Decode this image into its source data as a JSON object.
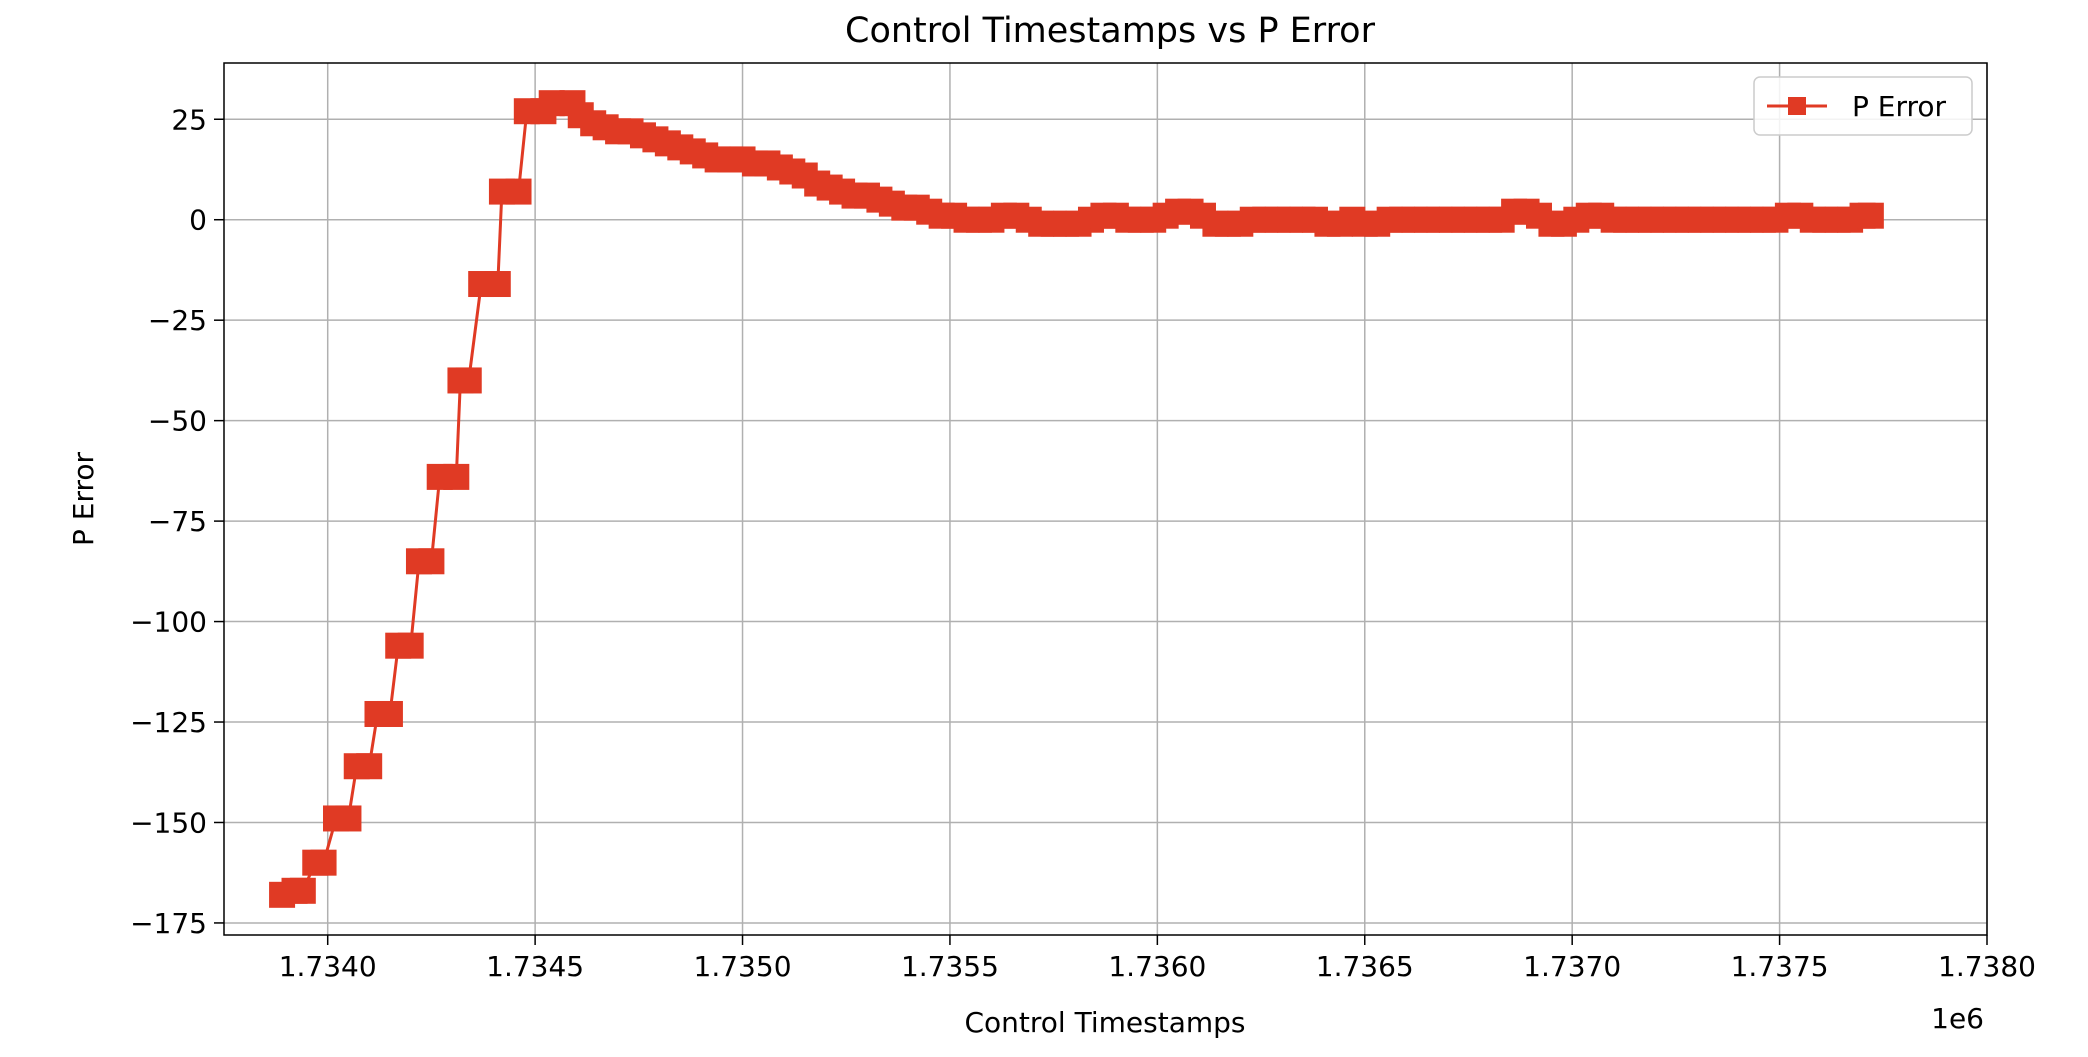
{
  "chart_data": {
    "type": "line",
    "title": "Control Timestamps vs P Error",
    "xlabel": "Control Timestamps",
    "ylabel": "P Error",
    "x_offset_label": "1e6",
    "xlim": [
      1.73375,
      1.738
    ],
    "ylim": [
      -178,
      39
    ],
    "xticks": [
      1.734,
      1.7345,
      1.735,
      1.7355,
      1.736,
      1.7365,
      1.737,
      1.7375,
      1.738
    ],
    "xtick_labels": [
      "1.7340",
      "1.7345",
      "1.7350",
      "1.7355",
      "1.7360",
      "1.7365",
      "1.7370",
      "1.7375",
      "1.7380"
    ],
    "yticks": [
      25,
      0,
      -25,
      -50,
      -75,
      -100,
      -125,
      -150,
      -175
    ],
    "ytick_labels": [
      "25",
      "0",
      "−25",
      "−50",
      "−75",
      "−100",
      "−125",
      "−150",
      "−175"
    ],
    "grid": true,
    "legend_position": "top-right",
    "series": [
      {
        "name": "P Error",
        "color": "#e03a24",
        "marker": "square",
        "points": [
          [
            1.73389,
            -168
          ],
          [
            1.73392,
            -167
          ],
          [
            1.73394,
            -167
          ],
          [
            1.73397,
            -160
          ],
          [
            1.73399,
            -160
          ],
          [
            1.73402,
            -149
          ],
          [
            1.73405,
            -149
          ],
          [
            1.73407,
            -136
          ],
          [
            1.7341,
            -136
          ],
          [
            1.73412,
            -123
          ],
          [
            1.73415,
            -123
          ],
          [
            1.73417,
            -106
          ],
          [
            1.7342,
            -106
          ],
          [
            1.73422,
            -85
          ],
          [
            1.73425,
            -85
          ],
          [
            1.73427,
            -64
          ],
          [
            1.73431,
            -64
          ],
          [
            1.73432,
            -40
          ],
          [
            1.73434,
            -40
          ],
          [
            1.73437,
            -16
          ],
          [
            1.73441,
            -16
          ],
          [
            1.73442,
            7
          ],
          [
            1.73446,
            7
          ],
          [
            1.73448,
            27
          ],
          [
            1.73452,
            27
          ],
          [
            1.73454,
            29
          ],
          [
            1.73459,
            29
          ],
          [
            1.73461,
            26
          ],
          [
            1.73464,
            24
          ],
          [
            1.73467,
            23
          ],
          [
            1.7347,
            22
          ],
          [
            1.73473,
            22
          ],
          [
            1.73476,
            21
          ],
          [
            1.73479,
            20
          ],
          [
            1.73482,
            19
          ],
          [
            1.73485,
            18
          ],
          [
            1.73488,
            17
          ],
          [
            1.73491,
            16
          ],
          [
            1.73494,
            15
          ],
          [
            1.73497,
            15
          ],
          [
            1.735,
            15
          ],
          [
            1.73503,
            14
          ],
          [
            1.73506,
            14
          ],
          [
            1.73509,
            13
          ],
          [
            1.73512,
            12
          ],
          [
            1.73515,
            11
          ],
          [
            1.73518,
            9
          ],
          [
            1.73521,
            8
          ],
          [
            1.73524,
            7
          ],
          [
            1.73527,
            6
          ],
          [
            1.7353,
            6
          ],
          [
            1.73533,
            5
          ],
          [
            1.73536,
            4
          ],
          [
            1.73539,
            3
          ],
          [
            1.73542,
            3
          ],
          [
            1.73545,
            2
          ],
          [
            1.73548,
            1
          ],
          [
            1.73551,
            1
          ],
          [
            1.73554,
            0
          ],
          [
            1.73557,
            0
          ],
          [
            1.7356,
            0
          ],
          [
            1.73563,
            1
          ],
          [
            1.73566,
            1
          ],
          [
            1.73569,
            0
          ],
          [
            1.73572,
            -1
          ],
          [
            1.73575,
            -1
          ],
          [
            1.73578,
            -1
          ],
          [
            1.73581,
            -1
          ],
          [
            1.73584,
            0
          ],
          [
            1.73587,
            1
          ],
          [
            1.7359,
            1
          ],
          [
            1.73593,
            0
          ],
          [
            1.73596,
            0
          ],
          [
            1.73599,
            0
          ],
          [
            1.73602,
            1
          ],
          [
            1.73605,
            2
          ],
          [
            1.73608,
            2
          ],
          [
            1.73611,
            1
          ],
          [
            1.73614,
            -1
          ],
          [
            1.73617,
            -1
          ],
          [
            1.7362,
            -1
          ],
          [
            1.73623,
            0
          ],
          [
            1.73626,
            0
          ],
          [
            1.73629,
            0
          ],
          [
            1.73632,
            0
          ],
          [
            1.73635,
            0
          ],
          [
            1.73638,
            0
          ],
          [
            1.73641,
            -1
          ],
          [
            1.73644,
            -1
          ],
          [
            1.73647,
            0
          ],
          [
            1.7365,
            -1
          ],
          [
            1.73653,
            -1
          ],
          [
            1.73656,
            0
          ],
          [
            1.73659,
            0
          ],
          [
            1.73662,
            0
          ],
          [
            1.73665,
            0
          ],
          [
            1.73668,
            0
          ],
          [
            1.73671,
            0
          ],
          [
            1.73674,
            0
          ],
          [
            1.73677,
            0
          ],
          [
            1.7368,
            0
          ],
          [
            1.73683,
            0
          ],
          [
            1.73686,
            2
          ],
          [
            1.73689,
            2
          ],
          [
            1.73692,
            1
          ],
          [
            1.73695,
            -1
          ],
          [
            1.73698,
            -1
          ],
          [
            1.73701,
            0
          ],
          [
            1.73704,
            1
          ],
          [
            1.73707,
            1
          ],
          [
            1.7371,
            0
          ],
          [
            1.73713,
            0
          ],
          [
            1.73716,
            0
          ],
          [
            1.73719,
            0
          ],
          [
            1.73722,
            0
          ],
          [
            1.73725,
            0
          ],
          [
            1.73728,
            0
          ],
          [
            1.73731,
            0
          ],
          [
            1.73734,
            0
          ],
          [
            1.73737,
            0
          ],
          [
            1.7374,
            0
          ],
          [
            1.73743,
            0
          ],
          [
            1.73746,
            0
          ],
          [
            1.73749,
            0
          ],
          [
            1.73752,
            1
          ],
          [
            1.73755,
            1
          ],
          [
            1.73758,
            0
          ],
          [
            1.73761,
            0
          ],
          [
            1.73764,
            0
          ],
          [
            1.73767,
            0
          ],
          [
            1.7377,
            1
          ],
          [
            1.73772,
            1
          ]
        ]
      }
    ]
  }
}
